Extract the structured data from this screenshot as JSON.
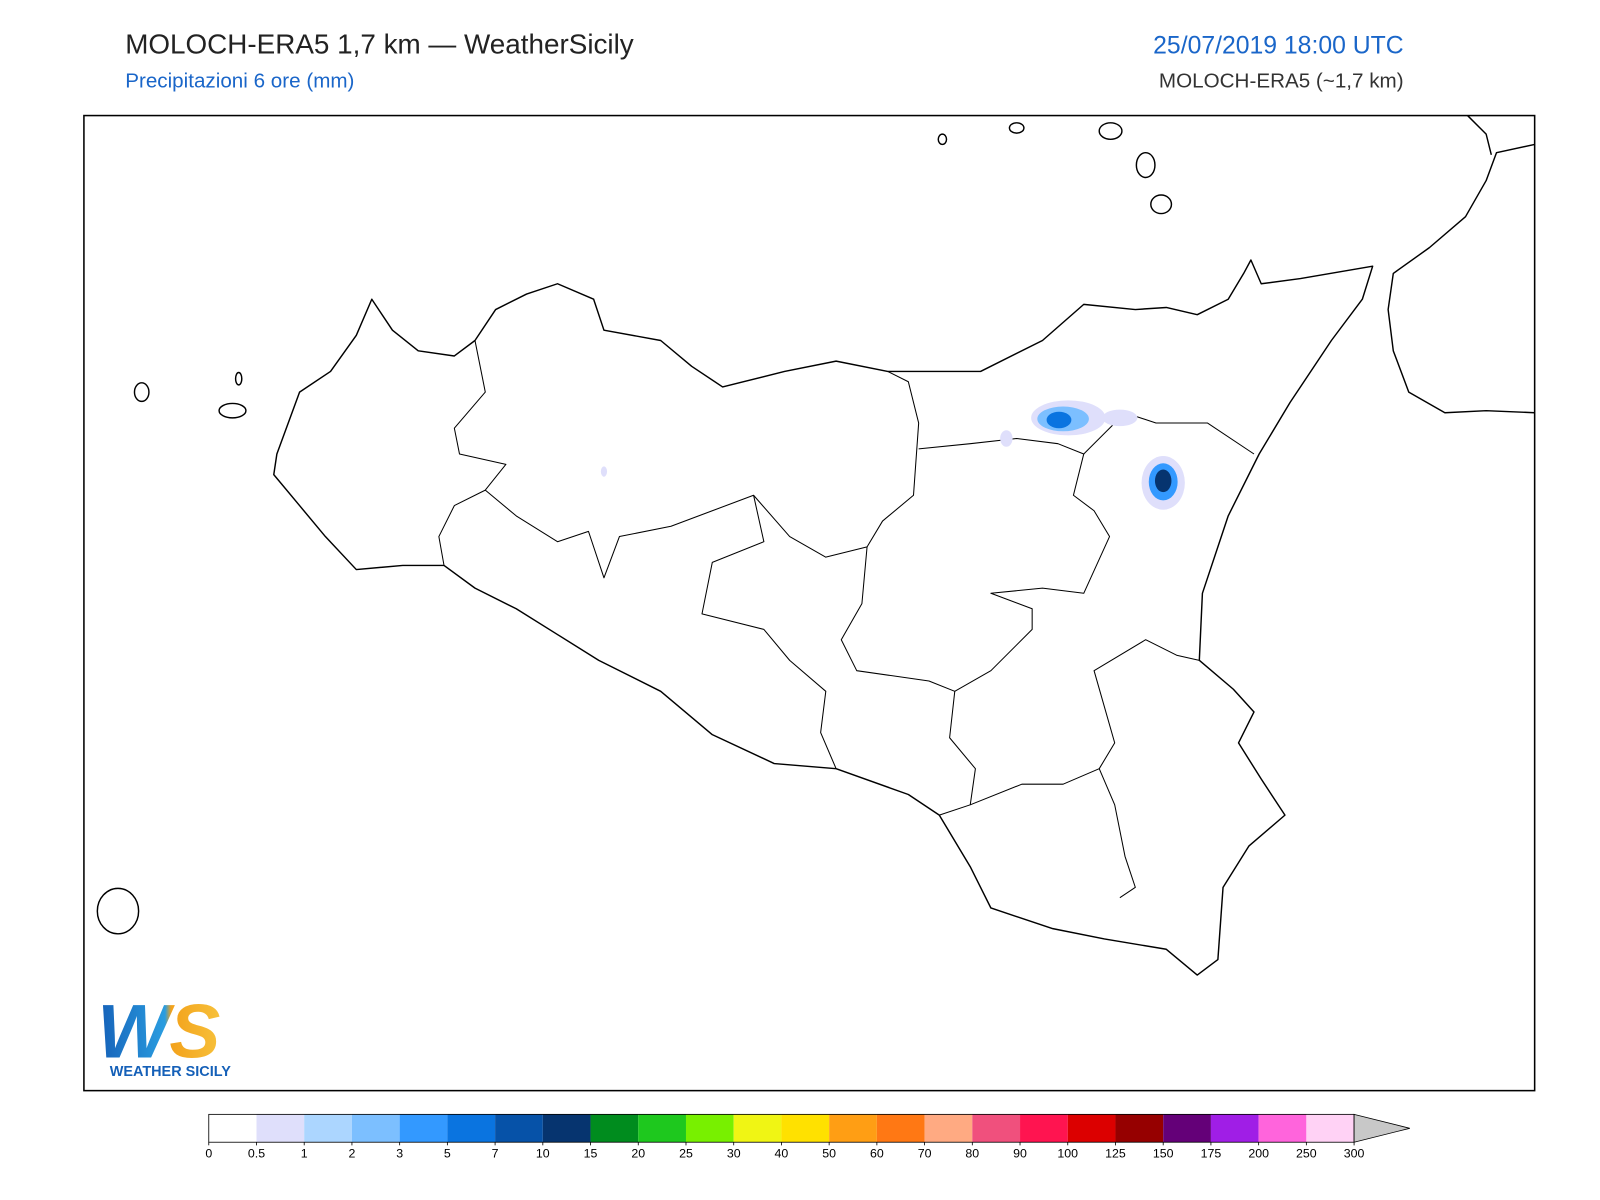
{
  "header": {
    "title": "MOLOCH-ERA5 1,7 km — WeatherSicily",
    "subtitle": "Precipitazioni 6 ore (mm)",
    "date": "25/07/2019 18:00 UTC",
    "model": "MOLOCH-ERA5 (~1,7 km)"
  },
  "logo": {
    "mark": "WS",
    "text": "WEATHER SICILY"
  },
  "colorbar": {
    "ticks": [
      0,
      0.5,
      1,
      2,
      3,
      5,
      7,
      10,
      15,
      20,
      25,
      30,
      40,
      50,
      60,
      70,
      80,
      90,
      100,
      125,
      150,
      175,
      200,
      250,
      300
    ],
    "colors": [
      "#ffffff",
      "#dfdffb",
      "#acd6ff",
      "#7cbfff",
      "#3399ff",
      "#0a74e0",
      "#0652a8",
      "#06346f",
      "#008c1e",
      "#1ec81e",
      "#78f000",
      "#f0f514",
      "#ffe100",
      "#ff9e14",
      "#ff7814",
      "#ffaa82",
      "#f0507d",
      "#ff1450",
      "#dc0000",
      "#960000",
      "#640078",
      "#a01ee6",
      "#ff64dc",
      "#ffd2f5"
    ],
    "over_color": "#c8c8c8"
  }
}
